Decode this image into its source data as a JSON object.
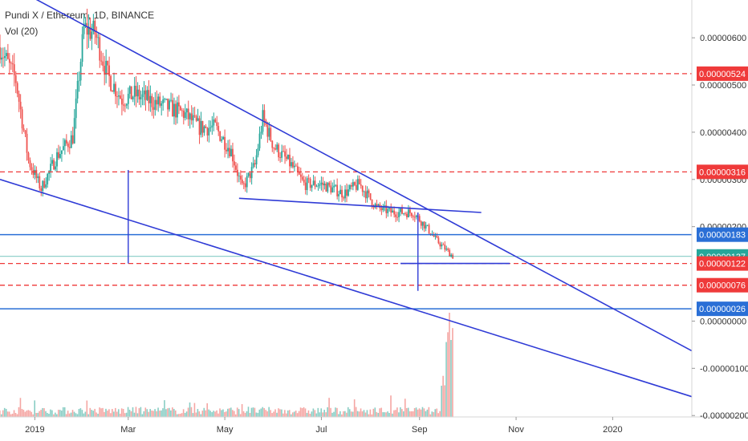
{
  "header": {
    "symbol_line": "Pundi X / Ethereum, 1D, BINANCE",
    "volume_line": "Vol (20)"
  },
  "colors": {
    "up": "#26a69a",
    "down": "#ef5350",
    "trendline": "#2f3bd6",
    "support_dashed": "#ef3a3a",
    "level_blue": "#2a6fd6",
    "current_price": "#26a69a",
    "volume_up": "#89cdc4",
    "volume_down": "#f5a6a3"
  },
  "chart_data": {
    "type": "candlestick",
    "title": "Pundi X / Ethereum, 1D, BINANCE",
    "x_tick_labels": [
      "2019",
      "Mar",
      "May",
      "Jul",
      "Sep",
      "Nov",
      "2020"
    ],
    "x_ticks": [
      "2019-01-01",
      "2019-03-01",
      "2019-05-01",
      "2019-07-01",
      "2019-09-01",
      "2019-11-01",
      "2020-01-01"
    ],
    "x_range": [
      "2018-12-10",
      "2020-02-20"
    ],
    "y_tick_labels": [
      "0.00000600",
      "0.00000500",
      "0.00000400",
      "0.00000300",
      "0.00000200",
      "0.00000000",
      "-0.00000100",
      "-0.00000200"
    ],
    "y_ticks": [
      6e-06,
      5e-06,
      4e-06,
      3e-06,
      2e-06,
      0,
      -1e-06,
      -2e-06
    ],
    "y_range": [
      -2.03e-06,
      6.8e-06
    ],
    "price_path": [
      {
        "date": "2018-12-10",
        "close": 5.8e-06
      },
      {
        "date": "2018-12-20",
        "close": 5.1e-06
      },
      {
        "date": "2018-12-28",
        "close": 3.4e-06
      },
      {
        "date": "2019-01-05",
        "close": 2.8e-06
      },
      {
        "date": "2019-01-15",
        "close": 3.5e-06
      },
      {
        "date": "2019-01-25",
        "close": 3.9e-06
      },
      {
        "date": "2019-02-01",
        "close": 6.2e-06
      },
      {
        "date": "2019-02-08",
        "close": 6.1e-06
      },
      {
        "date": "2019-02-16",
        "close": 5.2e-06
      },
      {
        "date": "2019-02-25",
        "close": 4.7e-06
      },
      {
        "date": "2019-03-05",
        "close": 4.8e-06
      },
      {
        "date": "2019-03-20",
        "close": 4.6e-06
      },
      {
        "date": "2019-04-05",
        "close": 4.4e-06
      },
      {
        "date": "2019-04-15",
        "close": 4.1e-06
      },
      {
        "date": "2019-04-25",
        "close": 4.1e-06
      },
      {
        "date": "2019-05-05",
        "close": 3.6e-06
      },
      {
        "date": "2019-05-12",
        "close": 2.8e-06
      },
      {
        "date": "2019-05-20",
        "close": 3.3e-06
      },
      {
        "date": "2019-05-25",
        "close": 4.3e-06
      },
      {
        "date": "2019-06-01",
        "close": 3.7e-06
      },
      {
        "date": "2019-06-12",
        "close": 3.3e-06
      },
      {
        "date": "2019-06-20",
        "close": 2.9e-06
      },
      {
        "date": "2019-07-01",
        "close": 2.9e-06
      },
      {
        "date": "2019-07-15",
        "close": 2.7e-06
      },
      {
        "date": "2019-07-25",
        "close": 2.9e-06
      },
      {
        "date": "2019-08-05",
        "close": 2.4e-06
      },
      {
        "date": "2019-08-15",
        "close": 2.3e-06
      },
      {
        "date": "2019-08-28",
        "close": 2.3e-06
      },
      {
        "date": "2019-09-05",
        "close": 2e-06
      },
      {
        "date": "2019-09-12",
        "close": 1.7e-06
      },
      {
        "date": "2019-09-22",
        "close": 1.37e-06
      }
    ],
    "horizontal_levels": [
      {
        "label": "0.00000524",
        "value": 5.24e-06,
        "style": "dashed-red"
      },
      {
        "label": "0.00000316",
        "value": 3.16e-06,
        "style": "dashed-red"
      },
      {
        "label": "0.00000183",
        "value": 1.83e-06,
        "style": "solid-blue"
      },
      {
        "label": "0.00000137",
        "value": 1.37e-06,
        "style": "current-price"
      },
      {
        "label": "0.00000122",
        "value": 1.22e-06,
        "style": "dashed-red"
      },
      {
        "label": "0.00000076",
        "value": 7.6e-07,
        "style": "dashed-red"
      },
      {
        "label": "0.00000026",
        "value": 2.6e-07,
        "style": "solid-blue"
      }
    ],
    "trendlines": [
      {
        "name": "upper-resistance",
        "from": {
          "date": "2018-12-28",
          "value": 6.9e-06
        },
        "to": {
          "date": "2020-02-20",
          "value": -6.3e-07
        }
      },
      {
        "name": "lower-support",
        "from": {
          "date": "2018-12-10",
          "value": 3e-06
        },
        "to": {
          "date": "2020-02-20",
          "value": -1.6e-06
        }
      },
      {
        "name": "flag-lower",
        "from": {
          "date": "2019-05-10",
          "value": 2.6e-06
        },
        "to": {
          "date": "2019-10-10",
          "value": 2.3e-06
        }
      }
    ],
    "measure_segments": [
      {
        "date": "2019-03-01",
        "from": 3.2e-06,
        "to": 1.22e-06
      },
      {
        "date": "2019-08-31",
        "from": 2.3e-06,
        "to": 6.4e-07
      }
    ],
    "target_segment": {
      "from_date": "2019-08-20",
      "to_date": "2019-10-28",
      "value": 1.22e-06
    },
    "volume": {
      "name": "Vol (20)",
      "spike_date": "2019-09-20",
      "baseline_relative": 0.08,
      "spike_relative": 1.0
    },
    "grid": false,
    "legend_position": "top-left"
  }
}
